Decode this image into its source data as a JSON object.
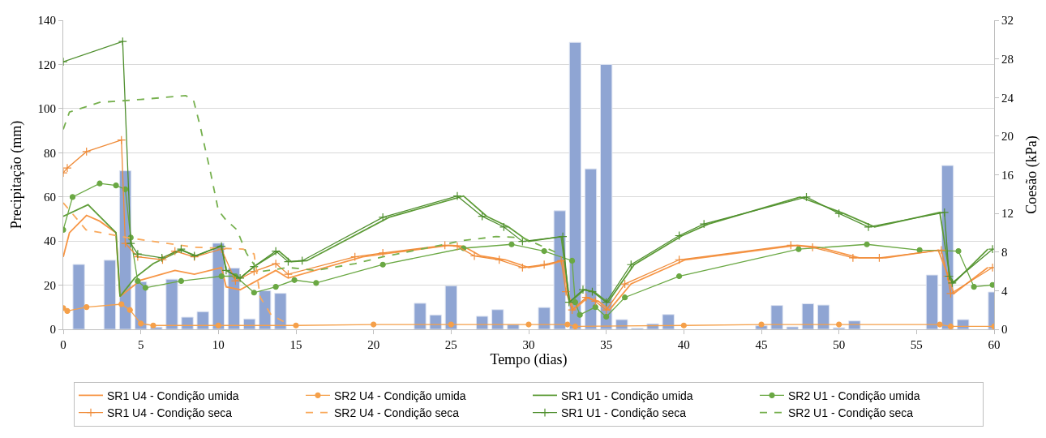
{
  "chart_data": {
    "type": "bar",
    "xlabel": "Tempo (dias)",
    "ylabel": "Precipitação (mm)",
    "y2label": "Coesão (kPa)",
    "xlim": [
      0,
      60
    ],
    "xticks": [
      0,
      5,
      10,
      15,
      20,
      25,
      30,
      35,
      40,
      45,
      50,
      55,
      60
    ],
    "ylim": [
      0,
      140
    ],
    "yticks": [
      0,
      20,
      40,
      60,
      80,
      100,
      120,
      140
    ],
    "y2lim": [
      0,
      32
    ],
    "y2ticks": [
      0,
      4,
      8,
      12,
      16,
      20,
      24,
      28,
      32
    ],
    "grid": "y",
    "legend": "bottom",
    "series": [
      {
        "color": "#8fa5d3",
        "x": [
          1,
          3,
          4,
          5,
          6,
          7,
          8,
          9,
          10,
          11,
          12,
          13,
          14,
          23,
          24,
          25,
          27,
          28,
          29,
          31,
          32,
          33,
          34,
          35,
          36,
          37,
          38,
          39,
          45,
          46,
          47,
          48,
          49,
          50,
          51,
          56,
          57,
          58,
          60
        ],
        "values": [
          29.4,
          31.3,
          71.8,
          21.6,
          1,
          22.7,
          5.5,
          8,
          39,
          27.7,
          4.7,
          17.5,
          16.3,
          11.8,
          6.5,
          19.7,
          5.9,
          8.9,
          2.2,
          9.9,
          53.7,
          130,
          72.7,
          120,
          4.4,
          0.5,
          2.5,
          6.7,
          1.6,
          10.8,
          1.1,
          11.6,
          11,
          0.7,
          3.8,
          24.6,
          74.2,
          4.4,
          16.9
        ]
      },
      {
        "type": "line",
        "axis": "y2",
        "name": "SR1 U4 - Condição umida",
        "color": "#f79646",
        "marker": "none",
        "line_style": "solid",
        "x": [
          0,
          0.4,
          1.5,
          2.35,
          3.4,
          3.66,
          5,
          7.2,
          8.45,
          10.2,
          10.5,
          11.4,
          13.7,
          14.5,
          19.3,
          21.1,
          24.9,
          25.8,
          26.9,
          28.5,
          30,
          31.3,
          32.2,
          32.5,
          32.9,
          33.8,
          34.5,
          35.2,
          36.6,
          40.1,
          47.3,
          48.7,
          51.3,
          53,
          56.4,
          57.05,
          57.4,
          59.6
        ],
        "values": [
          7.5,
          10,
          11.8,
          11.2,
          10,
          3.4,
          5.1,
          6.1,
          5.7,
          6.4,
          4.4,
          4.1,
          6.1,
          5.3,
          7.5,
          7.9,
          8.7,
          8.6,
          7.6,
          7.2,
          6.4,
          6.7,
          7.1,
          3.9,
          2,
          3.3,
          2.9,
          2,
          4.7,
          7.2,
          8.7,
          8.5,
          7.4,
          7.4,
          8.2,
          5.5,
          3.7,
          6.4
        ]
      },
      {
        "type": "line",
        "axis": "y2",
        "name": "SR2 U4 - Condição umida",
        "color": "#f5a04a",
        "marker": "circle",
        "line_style": "solid",
        "x": [
          0,
          0.26,
          1.5,
          3.75,
          4.3,
          5,
          5.8,
          10,
          15,
          20,
          25,
          30,
          32.5,
          33,
          40,
          45,
          50,
          56.5,
          57.2,
          60
        ],
        "values": [
          2.2,
          1.9,
          2.3,
          2.6,
          2,
          0.6,
          0.4,
          0.4,
          0.4,
          0.5,
          0.5,
          0.5,
          0.5,
          0.3,
          0.4,
          0.5,
          0.5,
          0.5,
          0.3,
          0.3
        ]
      },
      {
        "type": "line",
        "axis": "y2",
        "name": "SR1 U1 - Condição umida",
        "color": "#5e9c38",
        "marker": "none",
        "line_style": "solid",
        "x": [
          0,
          1.6,
          3.4,
          3.66,
          4.6,
          5.8,
          7.6,
          8.6,
          10.2,
          10.5,
          11.4,
          12.3,
          13.9,
          14.7,
          15.7,
          21,
          25.8,
          27.3,
          28.7,
          30,
          32.1,
          32.65,
          33.6,
          34.2,
          35.1,
          36.8,
          39.9,
          41.6,
          47.5,
          50.3,
          52.3,
          56.5,
          57.15,
          57.4,
          59.6
        ],
        "values": [
          11.7,
          12.9,
          10,
          3.4,
          5.3,
          6.8,
          8.2,
          7.6,
          8.7,
          6.1,
          5.3,
          6.5,
          8.1,
          7,
          7.1,
          11.6,
          13.8,
          11.7,
          10.6,
          9.1,
          9.6,
          2.8,
          4.1,
          3.9,
          2.8,
          6.7,
          9.7,
          10.9,
          13.7,
          12,
          10.6,
          12.1,
          5.5,
          4.8,
          8.3
        ]
      },
      {
        "type": "line",
        "axis": "y2",
        "name": "SR2 U1 - Condição umida",
        "color": "#6aa843",
        "marker": "circle",
        "line_style": "solid",
        "x": [
          0,
          0.6,
          2.35,
          3.4,
          4,
          4.35,
          4.8,
          5.3,
          7.6,
          10.2,
          11.1,
          12.3,
          13.7,
          14.9,
          16.3,
          20.6,
          25.8,
          28.9,
          31,
          32.8,
          33,
          33.3,
          34.3,
          35,
          36.2,
          39.7,
          47.4,
          51.8,
          55.2,
          57.7,
          58.7,
          59.9
        ],
        "values": [
          10.3,
          13.7,
          15.1,
          14.9,
          14.5,
          9.5,
          5,
          4.3,
          5,
          5.5,
          5.5,
          3.8,
          4.4,
          5.1,
          4.8,
          6.7,
          8.4,
          8.8,
          8.1,
          7.1,
          2.8,
          1.5,
          2.3,
          1.3,
          3.3,
          5.5,
          8.3,
          8.8,
          8.2,
          8.1,
          4.4,
          4.6
        ]
      },
      {
        "type": "line",
        "axis": "y2",
        "name": "SR1 U4 - Condição seca",
        "color": "#ef8c3a",
        "marker": "cross",
        "line_style": "solid",
        "x": [
          0,
          0.26,
          1.5,
          3.75,
          4,
          4.8,
          6.4,
          7.2,
          8.45,
          10.2,
          11.1,
          12.3,
          13.7,
          14.5,
          18.8,
          20.6,
          24.6,
          25.4,
          26.5,
          28.1,
          29.6,
          31,
          32.1,
          32.4,
          32.8,
          33.7,
          34.3,
          35,
          36.2,
          39.7,
          46.9,
          48.3,
          50.9,
          52.6,
          56.6,
          57,
          57.2,
          59.9
        ],
        "values": [
          16.2,
          16.7,
          18.4,
          19.6,
          8.9,
          7.5,
          7.2,
          8.1,
          7.5,
          8.3,
          5,
          6,
          6.8,
          5.7,
          7.5,
          7.9,
          8.7,
          8.6,
          7.6,
          7.2,
          6.4,
          6.7,
          7.1,
          3.9,
          2,
          3.3,
          2.9,
          2,
          4.7,
          7.2,
          8.7,
          8.5,
          7.4,
          7.4,
          8.2,
          5.5,
          3.7,
          6.4
        ]
      },
      {
        "type": "line",
        "axis": "y2",
        "name": "SR2 U4 - Condição seca",
        "color": "#f9a95c",
        "marker": "none",
        "line_style": "dashed",
        "x": [
          0,
          1.47,
          4.1,
          8.45,
          11.6,
          12.3,
          12.7,
          13.4,
          14.2
        ],
        "values": [
          13.1,
          10.3,
          9.5,
          8.5,
          8.3,
          7.8,
          3.3,
          1.5,
          0.8
        ]
      },
      {
        "type": "line",
        "axis": "y2",
        "name": "SR1 U1 - Condição seca",
        "color": "#4f8f2e",
        "marker": "cross",
        "line_style": "solid",
        "x": [
          0,
          3.83,
          4.35,
          4.8,
          6.36,
          7.6,
          8.45,
          10.2,
          10.5,
          11.4,
          12.3,
          13.7,
          14.5,
          15.4,
          20.6,
          25.4,
          27,
          28.4,
          29.6,
          32.2,
          32.6,
          33.5,
          34.1,
          35,
          36.6,
          39.7,
          41.3,
          47.9,
          50,
          51.9,
          56.8,
          57.1,
          57.3,
          59.9
        ],
        "values": [
          27.7,
          29.8,
          8.9,
          7.8,
          7.4,
          8.3,
          7.6,
          8.6,
          6.1,
          5.3,
          6.5,
          8.1,
          7,
          7.1,
          11.6,
          13.8,
          11.7,
          10.6,
          9.1,
          9.6,
          2.8,
          4.1,
          3.9,
          2.8,
          6.7,
          9.7,
          10.9,
          13.7,
          12,
          10.6,
          12.1,
          5.5,
          4.8,
          8.3
        ]
      },
      {
        "type": "line",
        "axis": "y2",
        "name": "SR2 U1 - Condição seca",
        "color": "#76b04e",
        "marker": "none",
        "line_style": "dashed",
        "x": [
          0,
          0.4,
          2.35,
          5,
          7.9,
          8.4,
          8.8,
          9.5,
          10,
          10.5,
          11.2,
          11.8,
          12.3,
          12.8,
          14.5,
          16.3,
          18.8,
          20.6,
          25.8,
          27.9,
          29.6,
          32
        ],
        "values": [
          20.7,
          22.5,
          23.5,
          23.8,
          24.2,
          23.7,
          21.2,
          16.2,
          12.3,
          11.3,
          10.3,
          7.9,
          6.7,
          6,
          6.4,
          6.1,
          6.8,
          7.5,
          9.2,
          9.6,
          9.5,
          7.8
        ]
      }
    ]
  }
}
